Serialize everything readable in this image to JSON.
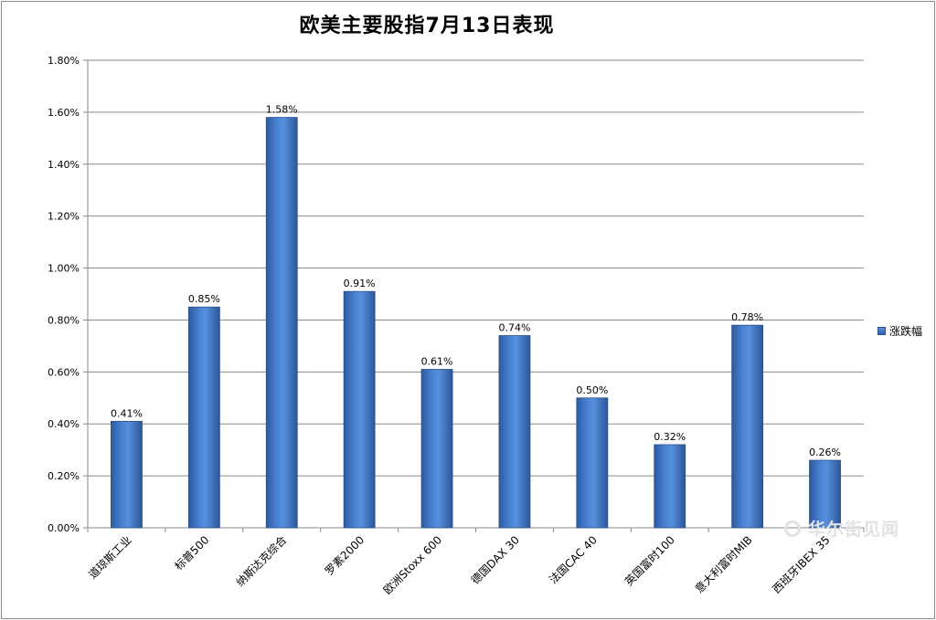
{
  "chart_data": {
    "type": "bar",
    "title": "欧美主要股指7月13日表现",
    "categories": [
      "道琼斯工业",
      "标普500",
      "纳斯达克综合",
      "罗素2000",
      "欧洲Stoxx 600",
      "德国DAX 30",
      "法国CAC 40",
      "英国富时100",
      "意大利富时MIB",
      "西班牙IBEX 35"
    ],
    "series": [
      {
        "name": "涨跌幅",
        "values": [
          0.41,
          0.85,
          1.58,
          0.91,
          0.61,
          0.74,
          0.5,
          0.32,
          0.78,
          0.26
        ]
      }
    ],
    "data_labels": [
      "0.41%",
      "0.85%",
      "1.58%",
      "0.91%",
      "0.61%",
      "0.74%",
      "0.50%",
      "0.32%",
      "0.78%",
      "0.26%"
    ],
    "yticks": [
      "0.00%",
      "0.20%",
      "0.40%",
      "0.60%",
      "0.80%",
      "1.00%",
      "1.20%",
      "1.40%",
      "1.60%",
      "1.80%"
    ],
    "ylim": [
      0,
      1.8
    ],
    "xlabel": "",
    "ylabel": "",
    "grid": true,
    "legend_position": "right",
    "bar_color": "#3a6fc0"
  },
  "legend": {
    "label": "涨跌幅"
  },
  "watermark": {
    "text": "华尔街见闻"
  }
}
